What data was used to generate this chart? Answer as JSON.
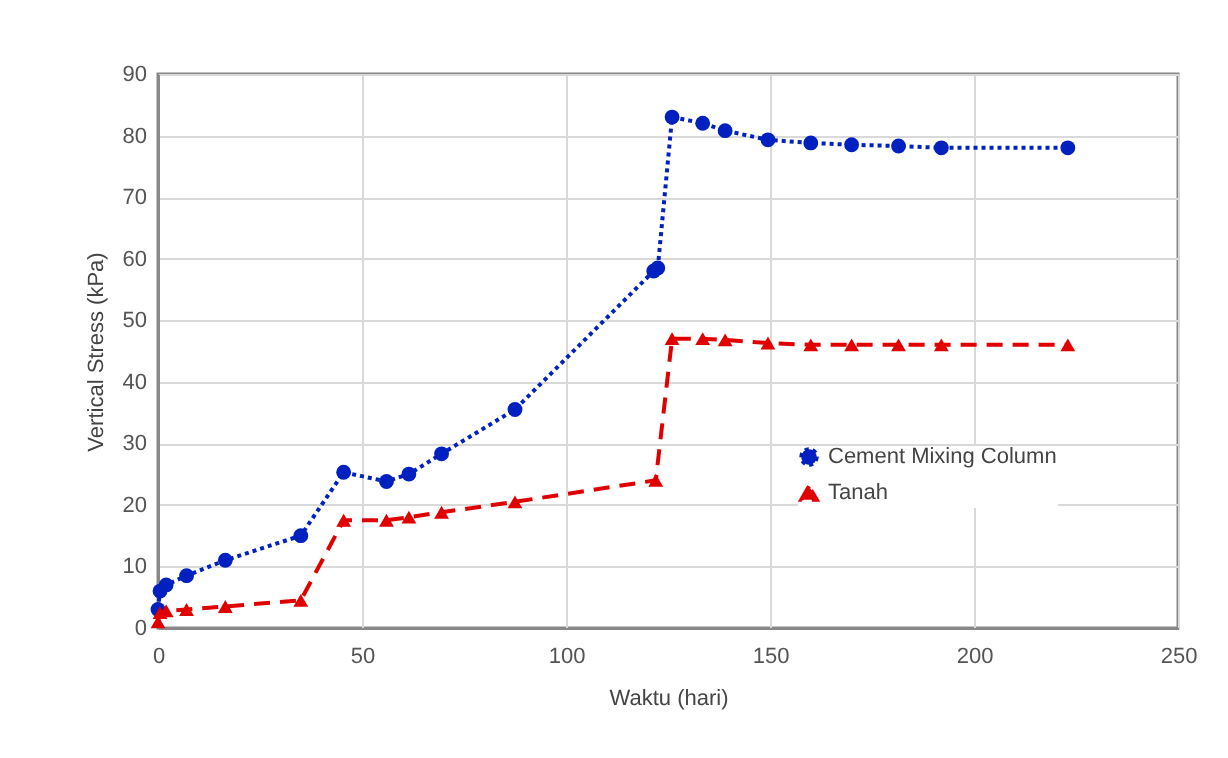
{
  "chart_data": {
    "type": "line",
    "xlabel": "Waktu (hari)",
    "ylabel": "Vertical Stress (kPa)",
    "xlim": [
      0,
      250
    ],
    "xticks": [
      0,
      50,
      100,
      150,
      200,
      250
    ],
    "ylim": [
      0,
      90
    ],
    "yticks": [
      0,
      10,
      20,
      30,
      40,
      50,
      60,
      70,
      80,
      90
    ],
    "grid": true,
    "legend": "bottom right",
    "series": [
      {
        "name": "Cement Mixing Column",
        "color": "#0020c0",
        "marker": "circle",
        "line_style": "dotted",
        "x": [
          0,
          0.5,
          2,
          7,
          16.5,
          35,
          45.5,
          56,
          61.5,
          69.5,
          87.5,
          121.5,
          122.5,
          126,
          133.5,
          139,
          149.5,
          160,
          170,
          181.5,
          192,
          223
        ],
        "values": [
          3,
          6,
          7,
          8.5,
          11,
          15,
          25.3,
          23.8,
          25,
          28.3,
          35.5,
          58,
          58.5,
          83,
          82,
          80.8,
          79.3,
          78.8,
          78.5,
          78.3,
          78,
          78
        ]
      },
      {
        "name": "Tanah",
        "color": "#e00000",
        "marker": "triangle",
        "line_style": "dashed",
        "x": [
          0,
          0.5,
          2,
          7,
          16.5,
          35,
          45.5,
          56,
          61.5,
          69.5,
          87.5,
          122,
          126,
          133.5,
          139,
          149.5,
          160,
          170,
          181.5,
          192,
          223
        ],
        "values": [
          1,
          2.5,
          2.8,
          3,
          3.5,
          4.5,
          17.5,
          17.5,
          18,
          18.8,
          20.5,
          24,
          47,
          47,
          46.8,
          46.3,
          46,
          46,
          46,
          46,
          46
        ]
      }
    ]
  }
}
